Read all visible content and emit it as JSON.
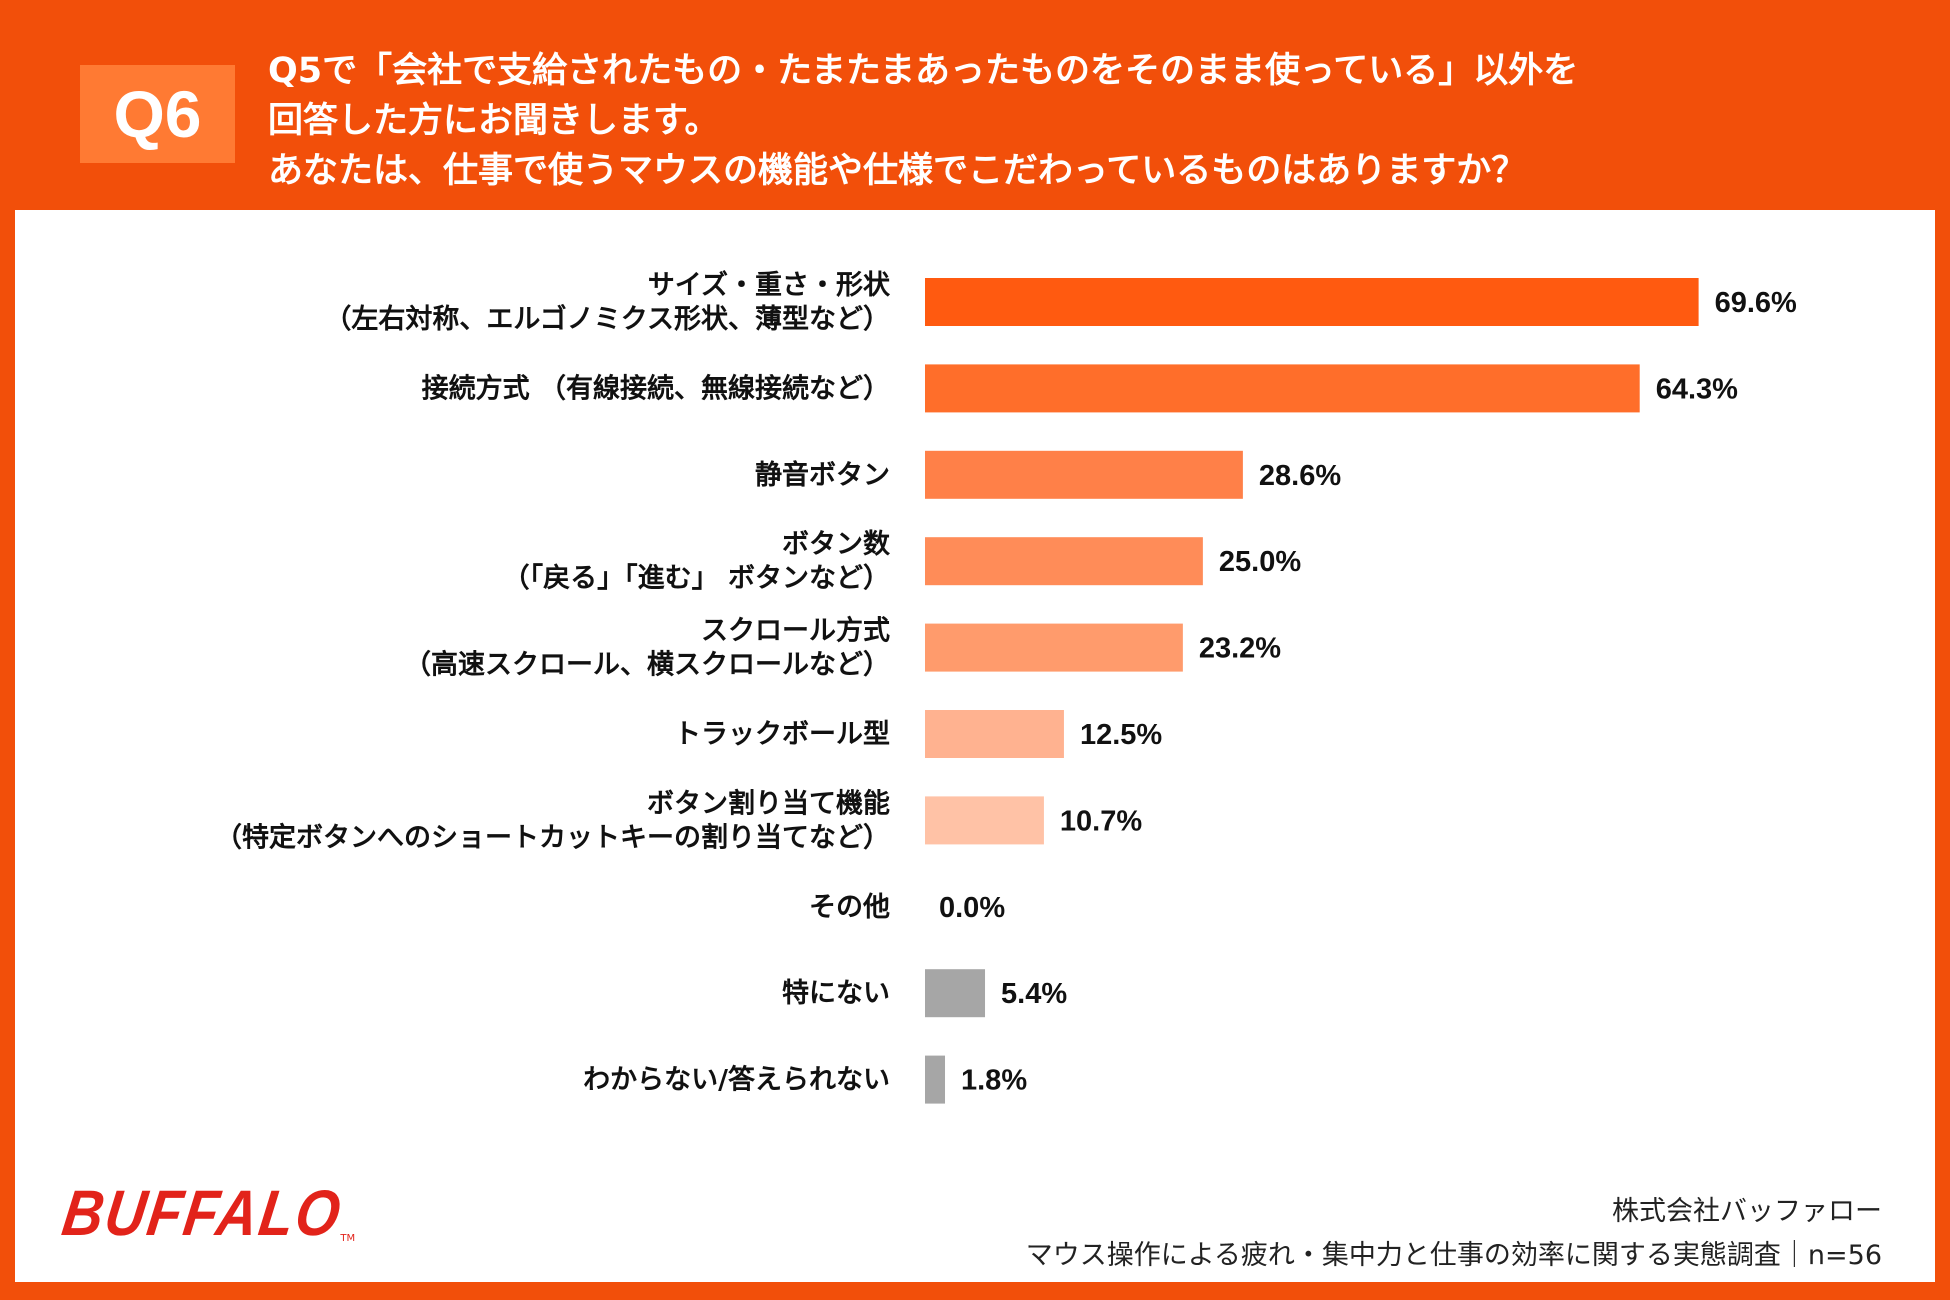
{
  "header": {
    "badge": "Q6",
    "lines": [
      "Q5で「会社で支給されたもの・たまたまあったものをそのまま使っている」以外を",
      "回答した方にお聞きします。",
      "あなたは、仕事で使うマウスの機能や仕様でこだわっているものはありますか？"
    ]
  },
  "colors": {
    "accent": "#f24f0a",
    "badge": "#ff7a33",
    "bars": [
      "#ff5a10",
      "#ff6e2a",
      "#ff8048",
      "#ff8c58",
      "#ff9b6c",
      "#ffb290",
      "#ffc2a6",
      "#ffd2bd",
      "#a6a6a6",
      "#a6a6a6"
    ]
  },
  "chart_data": {
    "type": "bar",
    "orientation": "horizontal",
    "categories": [
      [
        "サイズ・重さ・形状",
        "（左右対称、エルゴノミクス形状、薄型など）"
      ],
      [
        "接続方式 （有線接続、無線接続など）"
      ],
      [
        "静音ボタン"
      ],
      [
        "ボタン数",
        "（「戻る」「進む」 ボタンなど）"
      ],
      [
        "スクロール方式",
        "（高速スクロール、横スクロールなど）"
      ],
      [
        "トラックボール型"
      ],
      [
        "ボタン割り当て機能",
        "（特定ボタンへのショートカットキーの割り当てなど）"
      ],
      [
        "その他"
      ],
      [
        "特にない"
      ],
      [
        "わからない/答えられない"
      ]
    ],
    "values": [
      69.6,
      64.3,
      28.6,
      25.0,
      23.2,
      12.5,
      10.7,
      0.0,
      5.4,
      1.8
    ],
    "value_labels": [
      "69.6%",
      "64.3%",
      "28.6%",
      "25.0%",
      "23.2%",
      "12.5%",
      "10.7%",
      "0.0%",
      "5.4%",
      "1.8%"
    ],
    "xlim": [
      0,
      100
    ],
    "grid": false
  },
  "brand": {
    "logo": "BUFFALO",
    "tm": "TM"
  },
  "footer": {
    "company": "株式会社バッファロー",
    "survey": "マウス操作による疲れ・集中力と仕事の効率に関する実態調査｜n=56"
  }
}
